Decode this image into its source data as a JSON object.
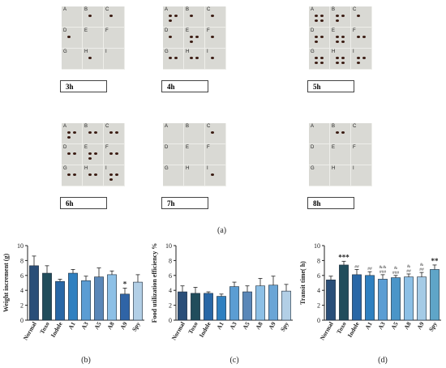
{
  "panel_a": {
    "caption": "(a)",
    "cell_letters": [
      "A",
      "B",
      "C",
      "D",
      "E",
      "F",
      "G",
      "H",
      "I"
    ],
    "photos": [
      {
        "time": "3h",
        "pellets": [
          0,
          1,
          1,
          1,
          0,
          0,
          0,
          1,
          0
        ]
      },
      {
        "time": "4h",
        "pellets": [
          3,
          1,
          1,
          1,
          3,
          1,
          2,
          2,
          1
        ]
      },
      {
        "time": "5h",
        "pellets": [
          4,
          3,
          1,
          3,
          4,
          2,
          4,
          4,
          3
        ]
      },
      {
        "time": "6h",
        "pellets": [
          3,
          2,
          2,
          2,
          3,
          2,
          2,
          2,
          3
        ]
      },
      {
        "time": "7h",
        "pellets": [
          0,
          0,
          1,
          0,
          0,
          0,
          0,
          0,
          1
        ]
      },
      {
        "time": "8h",
        "pellets": [
          0,
          2,
          0,
          0,
          0,
          0,
          0,
          0,
          0
        ]
      }
    ]
  },
  "chart_data": [
    {
      "type": "bar",
      "caption": "(b)",
      "ylabel": "Weight increment (g)",
      "ylim": [
        0,
        10
      ],
      "yticks": [
        0,
        2,
        4,
        6,
        8,
        10
      ],
      "categories": [
        "Normal",
        "Toxo",
        "Indole",
        "A1",
        "A3",
        "A5",
        "A8",
        "A9",
        "Spy"
      ],
      "values": [
        7.3,
        6.3,
        5.2,
        6.3,
        5.3,
        5.8,
        6.1,
        3.5,
        5.1
      ],
      "errors": [
        1.3,
        1.0,
        0.3,
        0.5,
        0.6,
        1.2,
        0.5,
        0.8,
        1.0
      ],
      "annotations": [
        "",
        "",
        "",
        "",
        "",
        "",
        "",
        "*",
        ""
      ],
      "colors": [
        "#2a4e78",
        "#214d5c",
        "#2867a6",
        "#2f80c0",
        "#5b9dd3",
        "#5a87b8",
        "#8dc0e6",
        "#2f64a6",
        "#b2cfe6"
      ]
    },
    {
      "type": "bar",
      "caption": "(c)",
      "ylabel": "Food utilization efficiency %",
      "ylim": [
        0,
        10
      ],
      "yticks": [
        0,
        2,
        4,
        6,
        8,
        10
      ],
      "categories": [
        "Normal",
        "Toxo",
        "Indole",
        "A1",
        "A3",
        "A5",
        "A8",
        "A9",
        "Spy"
      ],
      "values": [
        3.8,
        3.6,
        3.6,
        3.2,
        4.5,
        3.8,
        4.6,
        4.7,
        3.9
      ],
      "errors": [
        0.8,
        0.8,
        0.2,
        0.3,
        0.6,
        0.8,
        1.0,
        1.2,
        0.9
      ],
      "annotations": [
        "",
        "",
        "",
        "",
        "",
        "",
        "",
        "",
        ""
      ],
      "colors": [
        "#2a4e78",
        "#214d5c",
        "#2867a6",
        "#2f80c0",
        "#5b9dd3",
        "#5a87b8",
        "#8dc0e6",
        "#6aa5d6",
        "#b2cfe6"
      ]
    },
    {
      "type": "bar",
      "caption": "(d)",
      "ylabel": "Transit time( h)",
      "ylim": [
        0,
        10
      ],
      "yticks": [
        0,
        2,
        4,
        6,
        8,
        10
      ],
      "categories": [
        "Normal",
        "Toxo",
        "Indole",
        "A1",
        "A3",
        "A5",
        "A8",
        "A9",
        "Spy"
      ],
      "values": [
        5.4,
        7.4,
        6.1,
        6.0,
        5.5,
        5.7,
        5.8,
        5.8,
        6.8
      ],
      "errors": [
        0.5,
        0.5,
        0.7,
        0.5,
        0.6,
        0.3,
        0.4,
        0.6,
        0.6
      ],
      "annotations": [
        "",
        "***",
        "##",
        "##",
        "&&\n###",
        "&\n###",
        "&\n##",
        "&\n##",
        "**"
      ],
      "colors": [
        "#2a4e78",
        "#214d5c",
        "#2867a6",
        "#2f80c0",
        "#5b9dd3",
        "#4a95c8",
        "#8dc0e6",
        "#a5cbe6",
        "#5fa5c8"
      ]
    }
  ]
}
